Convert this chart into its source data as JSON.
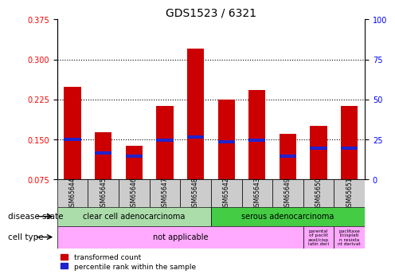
{
  "title": "GDS1523 / 6321",
  "samples": [
    "GSM65644",
    "GSM65645",
    "GSM65646",
    "GSM65647",
    "GSM65648",
    "GSM65642",
    "GSM65643",
    "GSM65649",
    "GSM65650",
    "GSM65651"
  ],
  "transformed_counts": [
    0.248,
    0.163,
    0.138,
    0.213,
    0.32,
    0.225,
    0.243,
    0.16,
    0.175,
    0.213
  ],
  "percentile_ranks": [
    0.15,
    0.125,
    0.118,
    0.148,
    0.155,
    0.145,
    0.148,
    0.118,
    0.133,
    0.133
  ],
  "ylim_left": [
    0.075,
    0.375
  ],
  "ylim_right": [
    0,
    100
  ],
  "yticks_left": [
    0.075,
    0.15,
    0.225,
    0.3,
    0.375
  ],
  "yticks_right": [
    0,
    25,
    50,
    75,
    100
  ],
  "bar_color_red": "#cc0000",
  "bar_color_blue": "#2222cc",
  "bar_width": 0.55,
  "blue_bar_thickness": 0.006,
  "disease_state_1": "clear cell adenocarcinoma",
  "disease_state_2": "serous adenocarcinoma",
  "cell_type_main": "not applicable",
  "cell_type_extra1": "parental\nof paclit\naxel/cisp\nlatin deri",
  "cell_type_extra2": "paclitaxe\nl/cisplati\nn resista\nnt derivat",
  "disease_bg1": "#aaddaa",
  "disease_bg2": "#44cc44",
  "cell_type_bg": "#ffaaff",
  "sample_bg": "#cccccc",
  "grid_color": "black",
  "legend_red_label": "transformed count",
  "legend_blue_label": "percentile rank within the sample",
  "title_fontsize": 10,
  "tick_fontsize": 7,
  "label_fontsize": 7.5
}
